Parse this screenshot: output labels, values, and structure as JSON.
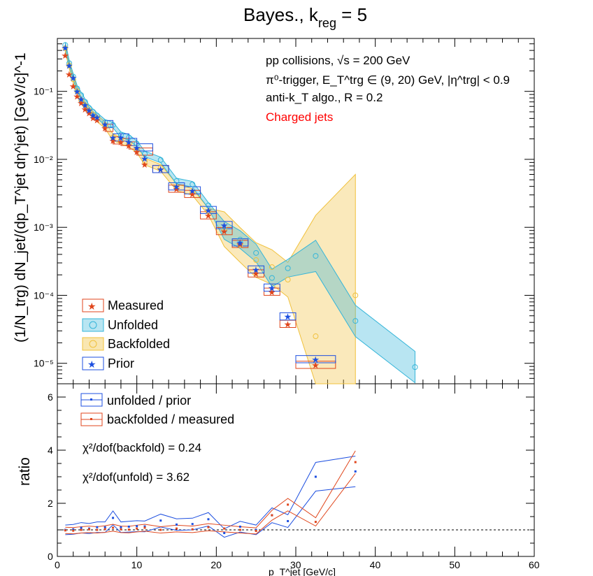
{
  "colors": {
    "measured": "#e0461c",
    "unfolded": "#35b5d9",
    "backfolded": "#f0c13c",
    "prior": "#1d4fe0",
    "ratio_unfold": "#1d4fe0",
    "ratio_backfold": "#e0461c",
    "annotation_red": "#ff0000"
  },
  "chart_data": [
    {
      "type": "scatter",
      "title": "Bayes., k",
      "title_sub": "reg",
      "title_tail": " = 5",
      "annotations": [
        "pp collisions, √s = 200 GeV",
        "π⁰-trigger, E_T^trg ∈ (9, 20) GeV, |η^trg| < 0.9",
        "anti-k_T algo., R = 0.2"
      ],
      "annotation_red": "Charged jets",
      "ylabel": "(1/N_trg) dN_jet/(dp_T^jet dη^jet) [GeV/c]^-1",
      "yscale": "log",
      "ylim": [
        5e-06,
        0.6
      ],
      "xlim": [
        0,
        60
      ],
      "y_ticks": [
        "10⁻⁵",
        "10⁻⁴",
        "10⁻³",
        "10⁻²",
        "10⁻¹"
      ],
      "legend": {
        "placement": "bottom-left",
        "entries": [
          "Measured",
          "Unfolded",
          "Backfolded",
          "Prior"
        ]
      },
      "series": [
        {
          "name": "Measured",
          "x": [
            1,
            1.5,
            2,
            2.5,
            3,
            3.5,
            4,
            4.5,
            5,
            6,
            7,
            8,
            9,
            10,
            11,
            13,
            15,
            17,
            19,
            21,
            23,
            25,
            27,
            29,
            32.5,
            37.5
          ],
          "y": [
            0.34,
            0.18,
            0.12,
            0.085,
            0.068,
            0.055,
            0.048,
            0.041,
            0.038,
            0.029,
            0.019,
            0.018,
            0.016,
            0.013,
            0.0085,
            0.0072,
            0.0037,
            0.0031,
            0.0015,
            0.00088,
            0.00057,
            0.00021,
            0.000113,
            3.8e-05,
            9.5e-06,
            0
          ]
        },
        {
          "name": "Unfolded",
          "x": [
            1,
            1.5,
            2,
            2.5,
            3,
            3.5,
            4,
            4.5,
            5,
            6,
            7,
            8,
            9,
            10,
            11,
            13,
            15,
            17,
            19,
            21,
            23,
            25,
            27,
            29,
            32.5,
            37.5,
            45
          ],
          "y": [
            0.48,
            0.26,
            0.165,
            0.11,
            0.088,
            0.07,
            0.057,
            0.05,
            0.044,
            0.035,
            0.032,
            0.023,
            0.021,
            0.017,
            0.012,
            0.0098,
            0.0048,
            0.0043,
            0.0021,
            0.0009,
            0.00066,
            0.00042,
            0.00018,
            0.00025,
            0.00038,
            4.2e-05,
            8.8e-06
          ]
        },
        {
          "name": "Backfolded",
          "x": [
            1,
            1.5,
            2,
            2.5,
            3,
            3.5,
            4,
            4.5,
            5,
            6,
            7,
            8,
            9,
            10,
            11,
            13,
            15,
            17,
            19,
            21,
            23,
            25,
            27,
            29,
            32.5,
            37.5
          ],
          "y": [
            0.43,
            0.24,
            0.15,
            0.1,
            0.074,
            0.062,
            0.052,
            0.045,
            0.04,
            0.032,
            0.021,
            0.019,
            0.017,
            0.014,
            0.0093,
            0.0075,
            0.0039,
            0.0033,
            0.0017,
            0.00094,
            0.00055,
            0.00033,
            0.00026,
            0.00017,
            2.5e-05,
            0.0001
          ]
        },
        {
          "name": "Prior",
          "x": [
            1,
            1.5,
            2,
            2.5,
            3,
            3.5,
            4,
            4.5,
            5,
            6,
            7,
            8,
            9,
            10,
            11,
            13,
            15,
            17,
            19,
            21,
            23,
            25,
            27,
            29,
            32.5,
            37.5
          ],
          "y": [
            0.44,
            0.24,
            0.16,
            0.1,
            0.077,
            0.063,
            0.053,
            0.045,
            0.042,
            0.033,
            0.021,
            0.021,
            0.018,
            0.015,
            0.0104,
            0.0072,
            0.004,
            0.0035,
            0.0018,
            0.00108,
            0.0006,
            0.00024,
            0.00013,
            4.9e-05,
            1.15e-05,
            0
          ]
        }
      ]
    },
    {
      "type": "line",
      "xlabel": "p_T^jet [GeV/c]",
      "ylabel": "ratio",
      "xlim": [
        0,
        60
      ],
      "ylim": [
        0,
        6.5
      ],
      "x_ticks": [
        "0",
        "10",
        "20",
        "30",
        "40",
        "50",
        "60"
      ],
      "y_ticks": [
        "0",
        "2",
        "4",
        "6"
      ],
      "reference_line": 1,
      "legend": {
        "placement": "top-left",
        "entries": [
          "unfolded / prior",
          "backfolded / measured"
        ]
      },
      "texts": [
        "χ²/dof(backfold) = 0.24",
        "χ²/dof(unfold) = 3.62"
      ],
      "series": [
        {
          "name": "unfolded / prior",
          "x": [
            1,
            2,
            3,
            4,
            5,
            6,
            7,
            8,
            9,
            10,
            11,
            13,
            15,
            17,
            19,
            21,
            23,
            25,
            27,
            29,
            32.5,
            37.5
          ],
          "y": [
            1.0,
            1.02,
            1.08,
            1.05,
            1.1,
            1.1,
            1.45,
            1.1,
            1.12,
            1.14,
            1.13,
            1.35,
            1.2,
            1.22,
            1.4,
            0.88,
            1.12,
            1.0,
            1.55,
            1.33,
            3.0,
            3.2
          ]
        },
        {
          "name": "backfolded / measured",
          "x": [
            1,
            2,
            3,
            4,
            5,
            6,
            7,
            8,
            9,
            10,
            11,
            13,
            15,
            17,
            19,
            21,
            23,
            25,
            27,
            29,
            32.5,
            37.5
          ],
          "y": [
            0.98,
            0.97,
            1.0,
            1.02,
            1.0,
            1.03,
            1.08,
            1.02,
            1.01,
            1.05,
            1.08,
            1.0,
            1.05,
            1.02,
            1.1,
            1.05,
            1.0,
            0.96,
            1.55,
            1.95,
            1.3,
            3.55
          ]
        }
      ]
    }
  ]
}
